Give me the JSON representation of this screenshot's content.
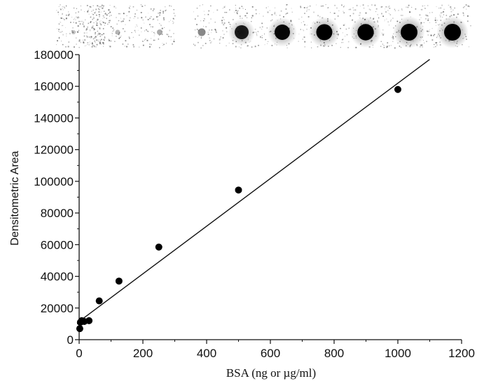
{
  "chart_data": {
    "type": "scatter",
    "xlabel": "BSA (ng or µg/ml)",
    "ylabel": "Densitometric Area",
    "xlim": [
      0,
      1200
    ],
    "ylim": [
      0,
      180000
    ],
    "x_ticks": [
      "0",
      "200",
      "400",
      "600",
      "800",
      "1000",
      "1200"
    ],
    "y_ticks": [
      "0",
      "20000",
      "40000",
      "60000",
      "80000",
      "100000",
      "120000",
      "140000",
      "160000",
      "180000"
    ],
    "grid": false,
    "points": [
      {
        "x": 2,
        "y": 7000
      },
      {
        "x": 4,
        "y": 11000
      },
      {
        "x": 8,
        "y": 12000
      },
      {
        "x": 16,
        "y": 11500
      },
      {
        "x": 31,
        "y": 12000
      },
      {
        "x": 63,
        "y": 24500
      },
      {
        "x": 125,
        "y": 37000
      },
      {
        "x": 250,
        "y": 58500
      },
      {
        "x": 500,
        "y": 94500
      },
      {
        "x": 1000,
        "y": 158000
      }
    ],
    "fit_line": {
      "x": [
        0,
        1100
      ],
      "y": [
        11500,
        177000
      ]
    },
    "dot_blot": [
      {
        "intensity": 0.1
      },
      {
        "intensity": 0.15
      },
      {
        "intensity": 0.2
      },
      {
        "intensity": 0.35
      },
      {
        "intensity": 0.8
      },
      {
        "intensity": 0.9
      },
      {
        "intensity": 0.95
      },
      {
        "intensity": 0.97
      },
      {
        "intensity": 1.0
      },
      {
        "intensity": 1.0
      }
    ]
  }
}
